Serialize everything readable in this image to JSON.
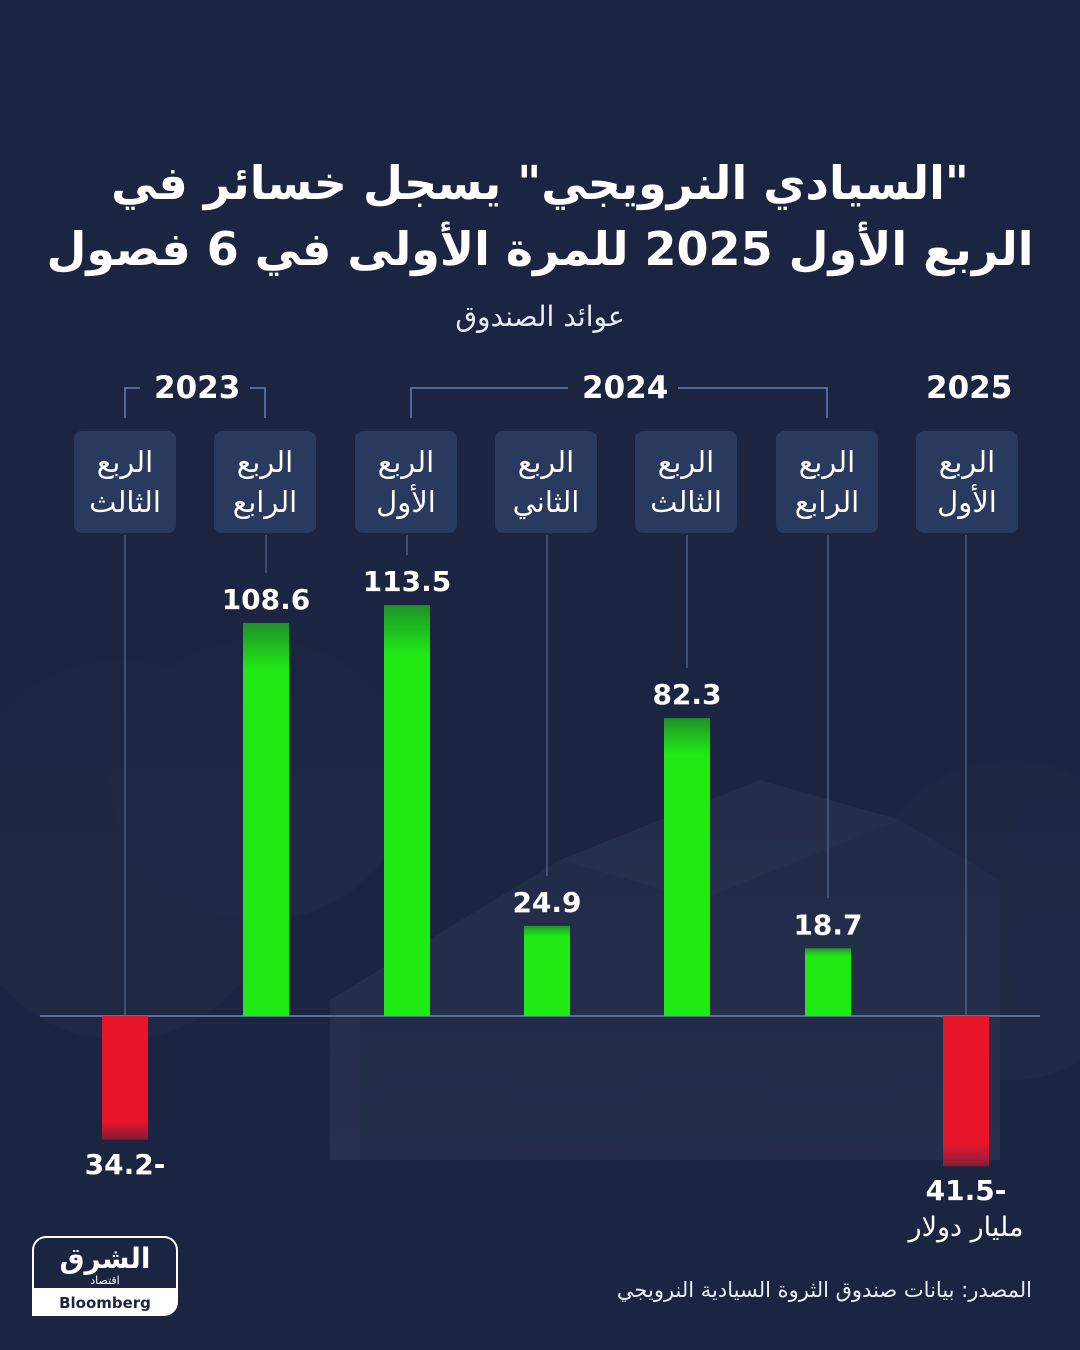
{
  "title_line1": "\"السيادي النرويجي\" يسجل خسائر في",
  "title_line2": "الربع الأول 2025 للمرة الأولى في 6 فصول",
  "subtitle": "عوائد الصندوق",
  "years": [
    "2023",
    "2024",
    "2025"
  ],
  "unit_label": "مليار دولار",
  "source": "المصدر: بيانات صندوق الثروة السيادية النرويجي",
  "logo": {
    "main": "الشرق",
    "sub": "اقتصاد",
    "with": "مع",
    "partner": "Bloomberg"
  },
  "colors": {
    "background": "#1b2541",
    "positive": "#1fea14",
    "negative": "#e8142a",
    "quarter_box": "#2a3a5e"
  },
  "chart_data": {
    "type": "bar",
    "title": "\"السيادي النرويجي\" يسجل خسائر في الربع الأول 2025 للمرة الأولى في 6 فصول",
    "ylabel": "مليار دولار",
    "categories": [
      "الربع الثالث 2023",
      "الربع الرابع 2023",
      "الربع الأول 2024",
      "الربع الثاني 2024",
      "الربع الثالث 2024",
      "الربع الرابع 2024",
      "الربع الأول 2025"
    ],
    "quarter_labels": [
      "الربع\nالثالث",
      "الربع\nالرابع",
      "الربع\nالأول",
      "الربع\nالثاني",
      "الربع\nالثالث",
      "الربع\nالرابع",
      "الربع\nالأول"
    ],
    "values": [
      -34.2,
      108.6,
      113.5,
      24.9,
      82.3,
      18.7,
      -41.5
    ],
    "value_labels": [
      "34.2-",
      "108.6",
      "113.5",
      "24.9",
      "82.3",
      "18.7",
      "41.5-"
    ],
    "ylim": [
      -45,
      115
    ],
    "grid": false
  }
}
